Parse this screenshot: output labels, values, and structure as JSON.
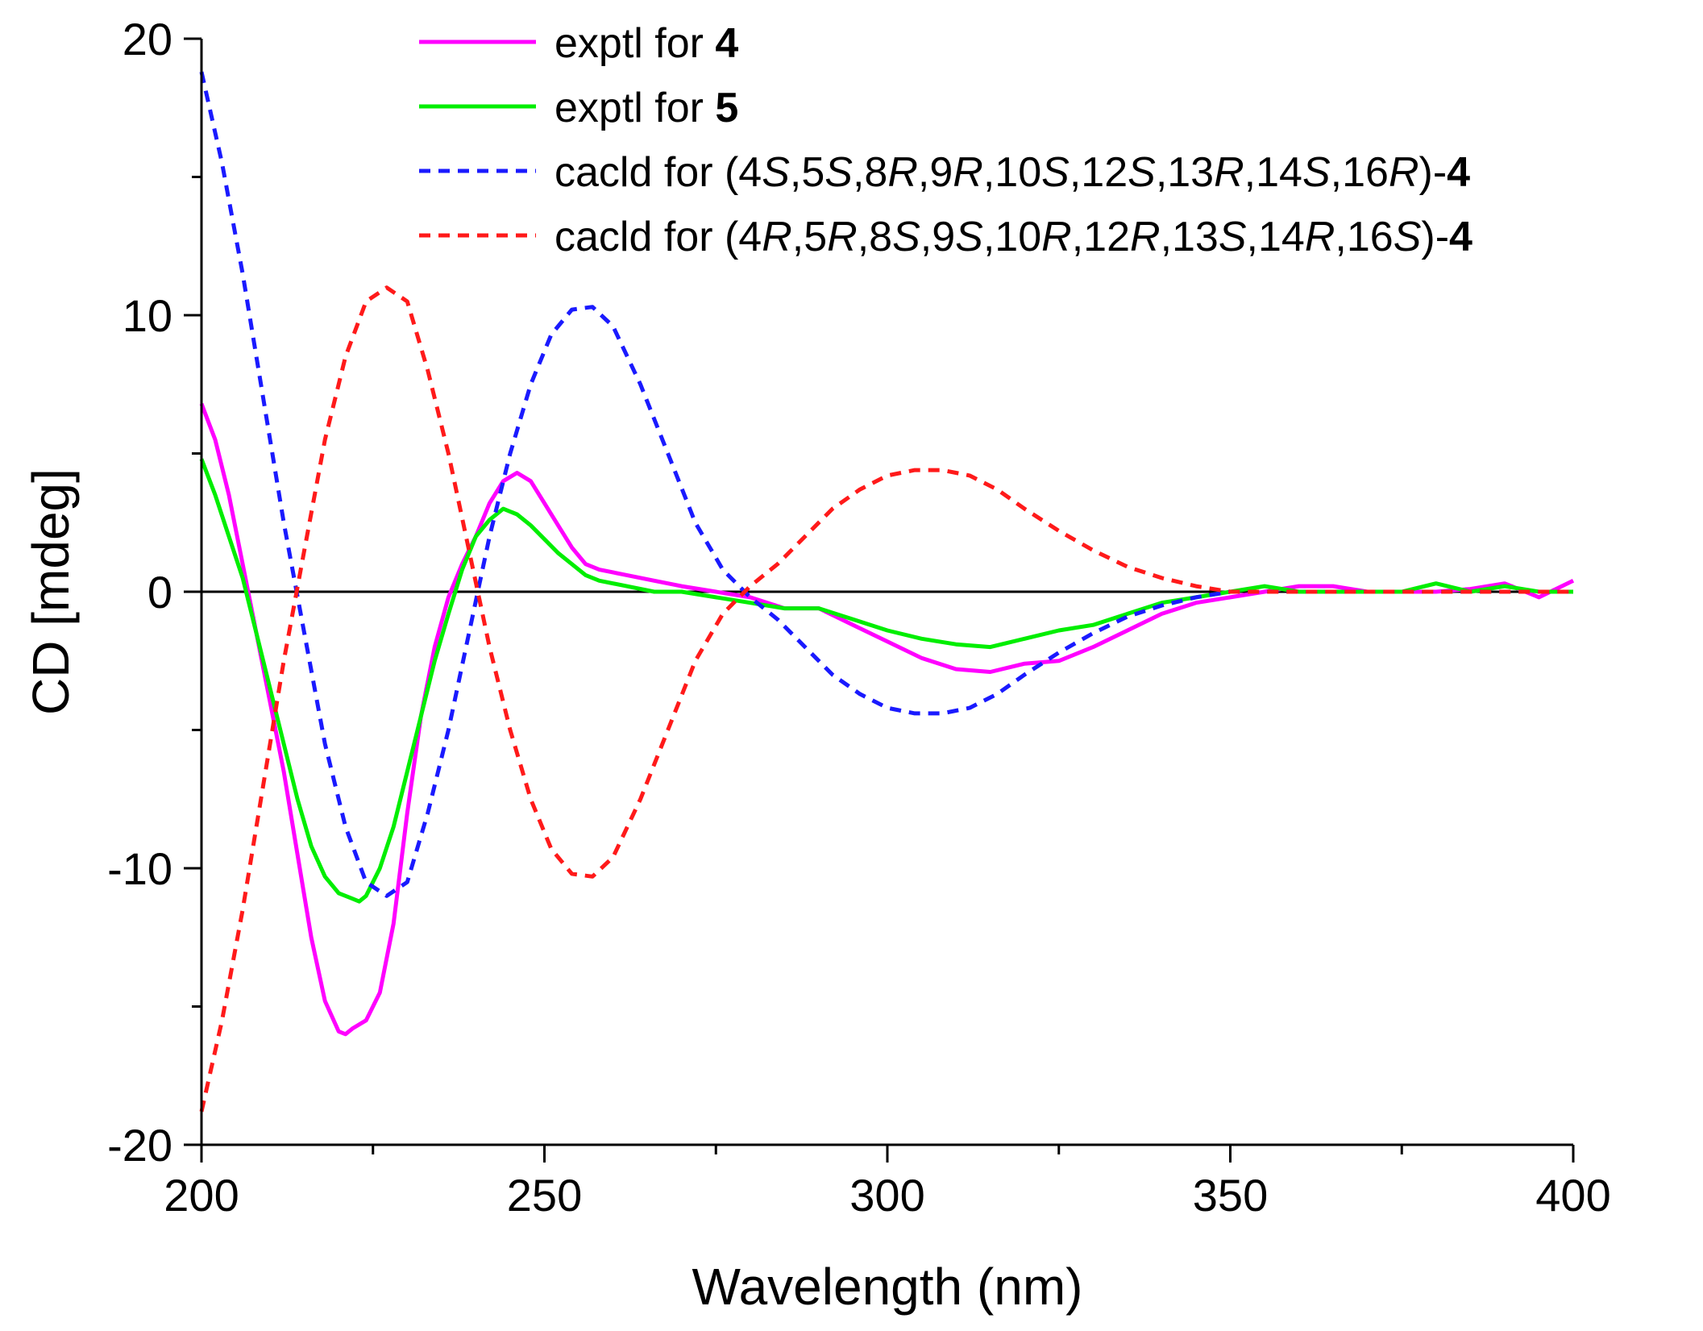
{
  "chart_data": {
    "type": "line",
    "title": "",
    "xlabel": "Wavelength (nm)",
    "ylabel": "CD [mdeg]",
    "xlim": [
      200,
      400
    ],
    "ylim": [
      -20,
      20
    ],
    "xticks": [
      200,
      250,
      300,
      350,
      400
    ],
    "xtick_labels": [
      "200",
      "250",
      "300",
      "350",
      "400"
    ],
    "xticks_minor": [
      225,
      275,
      325,
      375
    ],
    "yticks": [
      -20,
      -10,
      0,
      10,
      20
    ],
    "ytick_labels": [
      "-20",
      "-10",
      "0",
      "10",
      "20"
    ],
    "yticks_minor": [
      -15,
      -5,
      5,
      15
    ],
    "zero_line": true,
    "grid": false,
    "legend_position": "top",
    "series": [
      {
        "name": "exptl for 4",
        "legend_parts": [
          {
            "text": "exptl for ",
            "style": "normal"
          },
          {
            "text": "4",
            "style": "bold"
          }
        ],
        "color": "#ff00ff",
        "dash": "solid",
        "x": [
          200,
          202,
          204,
          206,
          208,
          210,
          212,
          214,
          216,
          218,
          220,
          221,
          222,
          224,
          226,
          228,
          230,
          232,
          234,
          236,
          238,
          240,
          242,
          244,
          246,
          248,
          250,
          252,
          254,
          256,
          258,
          262,
          266,
          270,
          275,
          280,
          285,
          290,
          295,
          300,
          305,
          310,
          315,
          320,
          325,
          330,
          335,
          340,
          345,
          350,
          355,
          360,
          365,
          370,
          375,
          380,
          385,
          390,
          395,
          400
        ],
        "y": [
          6.8,
          5.5,
          3.5,
          1.0,
          -1.5,
          -4.0,
          -6.5,
          -9.5,
          -12.5,
          -14.8,
          -15.9,
          -16.0,
          -15.8,
          -15.5,
          -14.5,
          -12.0,
          -8.0,
          -4.5,
          -2.0,
          -0.2,
          1.0,
          2.0,
          3.2,
          4.0,
          4.3,
          4.0,
          3.2,
          2.4,
          1.6,
          1.0,
          0.8,
          0.6,
          0.4,
          0.2,
          0.0,
          -0.2,
          -0.6,
          -0.6,
          -1.2,
          -1.8,
          -2.4,
          -2.8,
          -2.9,
          -2.6,
          -2.5,
          -2.0,
          -1.4,
          -0.8,
          -0.4,
          -0.2,
          0.0,
          0.2,
          0.2,
          0.0,
          0.0,
          0.0,
          0.1,
          0.3,
          -0.2,
          0.4
        ]
      },
      {
        "name": "exptl for 5",
        "legend_parts": [
          {
            "text": "exptl for ",
            "style": "normal"
          },
          {
            "text": "5",
            "style": "bold"
          }
        ],
        "color": "#00ee00",
        "dash": "solid",
        "x": [
          200,
          202,
          204,
          206,
          208,
          210,
          212,
          214,
          216,
          218,
          220,
          222,
          223,
          224,
          226,
          228,
          230,
          232,
          234,
          236,
          238,
          240,
          242,
          244,
          246,
          248,
          250,
          252,
          254,
          256,
          258,
          262,
          266,
          270,
          275,
          280,
          285,
          290,
          295,
          300,
          305,
          310,
          315,
          320,
          325,
          330,
          335,
          340,
          345,
          350,
          355,
          360,
          365,
          370,
          375,
          380,
          385,
          390,
          395,
          400
        ],
        "y": [
          4.8,
          3.5,
          2.0,
          0.5,
          -1.5,
          -3.5,
          -5.5,
          -7.5,
          -9.2,
          -10.3,
          -10.9,
          -11.1,
          -11.2,
          -11.0,
          -10.0,
          -8.5,
          -6.5,
          -4.5,
          -2.5,
          -0.8,
          0.8,
          2.0,
          2.6,
          3.0,
          2.8,
          2.4,
          1.9,
          1.4,
          1.0,
          0.6,
          0.4,
          0.2,
          0.0,
          0.0,
          -0.2,
          -0.4,
          -0.6,
          -0.6,
          -1.0,
          -1.4,
          -1.7,
          -1.9,
          -2.0,
          -1.7,
          -1.4,
          -1.2,
          -0.8,
          -0.4,
          -0.2,
          0.0,
          0.2,
          0.0,
          0.0,
          0.0,
          0.0,
          0.3,
          0.0,
          0.2,
          0.0,
          0.0
        ]
      },
      {
        "name": "cacld for (4S,5S,8R,9R,10S,12S,13R,14S,16R)-4",
        "legend_parts": [
          {
            "text": "cacld for (4",
            "style": "normal"
          },
          {
            "text": "S",
            "style": "italic"
          },
          {
            "text": ",5",
            "style": "normal"
          },
          {
            "text": "S",
            "style": "italic"
          },
          {
            "text": ",8",
            "style": "normal"
          },
          {
            "text": "R",
            "style": "italic"
          },
          {
            "text": ",9",
            "style": "normal"
          },
          {
            "text": "R",
            "style": "italic"
          },
          {
            "text": ",10",
            "style": "normal"
          },
          {
            "text": "S",
            "style": "italic"
          },
          {
            "text": ",12",
            "style": "normal"
          },
          {
            "text": "S",
            "style": "italic"
          },
          {
            "text": ",13",
            "style": "normal"
          },
          {
            "text": "R",
            "style": "italic"
          },
          {
            "text": ",14",
            "style": "normal"
          },
          {
            "text": "S",
            "style": "italic"
          },
          {
            "text": ",16",
            "style": "normal"
          },
          {
            "text": "R",
            "style": "italic"
          },
          {
            "text": ")-",
            "style": "normal"
          },
          {
            "text": "4",
            "style": "bold"
          }
        ],
        "color": "#1a1aff",
        "dash": "dashed",
        "x": [
          200,
          203,
          206,
          209,
          212,
          215,
          218,
          221,
          224,
          227,
          230,
          233,
          236,
          239,
          242,
          245,
          248,
          251,
          254,
          257,
          260,
          264,
          268,
          272,
          276,
          280,
          284,
          288,
          292,
          296,
          300,
          304,
          308,
          310,
          312,
          316,
          320,
          325,
          330,
          335,
          340,
          345,
          350,
          355,
          360,
          370,
          380,
          390,
          400
        ],
        "y": [
          18.8,
          15.5,
          11.5,
          7.0,
          2.5,
          -1.5,
          -5.5,
          -8.5,
          -10.5,
          -11.0,
          -10.5,
          -8.0,
          -5.0,
          -1.5,
          2.0,
          5.0,
          7.5,
          9.3,
          10.2,
          10.3,
          9.6,
          7.5,
          5.0,
          2.5,
          0.8,
          -0.2,
          -1.0,
          -2.0,
          -3.0,
          -3.7,
          -4.2,
          -4.4,
          -4.4,
          -4.3,
          -4.2,
          -3.7,
          -3.0,
          -2.2,
          -1.5,
          -0.9,
          -0.5,
          -0.2,
          0.0,
          0.0,
          0.0,
          0.0,
          0.0,
          0.0,
          0.0
        ]
      },
      {
        "name": "cacld for (4R,5R,8S,9S,10R,12R,13S,14R,16S)-4",
        "legend_parts": [
          {
            "text": "cacld for (4",
            "style": "normal"
          },
          {
            "text": "R",
            "style": "italic"
          },
          {
            "text": ",5",
            "style": "normal"
          },
          {
            "text": "R",
            "style": "italic"
          },
          {
            "text": ",8",
            "style": "normal"
          },
          {
            "text": "S",
            "style": "italic"
          },
          {
            "text": ",9",
            "style": "normal"
          },
          {
            "text": "S",
            "style": "italic"
          },
          {
            "text": ",10",
            "style": "normal"
          },
          {
            "text": "R",
            "style": "italic"
          },
          {
            "text": ",12",
            "style": "normal"
          },
          {
            "text": "R",
            "style": "italic"
          },
          {
            "text": ",13",
            "style": "normal"
          },
          {
            "text": "S",
            "style": "italic"
          },
          {
            "text": ",14",
            "style": "normal"
          },
          {
            "text": "R",
            "style": "italic"
          },
          {
            "text": ",16",
            "style": "normal"
          },
          {
            "text": "S",
            "style": "italic"
          },
          {
            "text": ")-",
            "style": "normal"
          },
          {
            "text": "4",
            "style": "bold"
          }
        ],
        "color": "#ff1a1a",
        "dash": "dashed",
        "x": [
          200,
          203,
          206,
          209,
          212,
          215,
          218,
          221,
          224,
          227,
          230,
          233,
          236,
          239,
          242,
          245,
          248,
          251,
          254,
          257,
          260,
          264,
          268,
          272,
          276,
          280,
          284,
          288,
          292,
          296,
          300,
          304,
          308,
          310,
          312,
          316,
          320,
          325,
          330,
          335,
          340,
          345,
          350,
          355,
          360,
          370,
          380,
          390,
          400
        ],
        "y": [
          -18.8,
          -15.5,
          -11.5,
          -7.0,
          -2.5,
          1.5,
          5.5,
          8.5,
          10.5,
          11.0,
          10.5,
          8.0,
          5.0,
          1.5,
          -2.0,
          -5.0,
          -7.5,
          -9.3,
          -10.2,
          -10.3,
          -9.6,
          -7.5,
          -5.0,
          -2.5,
          -0.8,
          0.2,
          1.0,
          2.0,
          3.0,
          3.7,
          4.2,
          4.4,
          4.4,
          4.3,
          4.2,
          3.7,
          3.0,
          2.2,
          1.5,
          0.9,
          0.5,
          0.2,
          0.0,
          0.0,
          0.0,
          0.0,
          0.0,
          0.0,
          0.0
        ]
      }
    ]
  }
}
